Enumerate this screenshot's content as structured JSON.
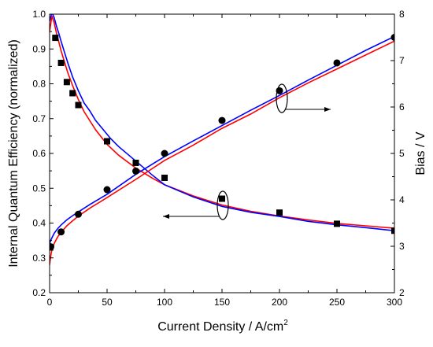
{
  "chart_data": {
    "type": "scatter",
    "title": "",
    "xlabel": "Current Density / A/cm",
    "xlabel_sup": "2",
    "ylabel_left": "Internal Quantum Efficiency (normalized)",
    "ylabel_right": "Bias / V",
    "xlim": [
      0,
      300
    ],
    "ylim_left": [
      0.2,
      1.0
    ],
    "ylim_right": [
      2,
      8
    ],
    "x_ticks": [
      0,
      50,
      100,
      150,
      200,
      250,
      300
    ],
    "x_tick_labels": [
      "0",
      "50",
      "100",
      "150",
      "200",
      "250",
      "300"
    ],
    "y_left_ticks": [
      0.2,
      0.3,
      0.4,
      0.5,
      0.6,
      0.7,
      0.8,
      0.9,
      1.0
    ],
    "y_left_tick_labels": [
      "0.2",
      "0.3",
      "0.4",
      "0.5",
      "0.6",
      "0.7",
      "0.8",
      "0.9",
      "1.0"
    ],
    "y_right_ticks": [
      2,
      3,
      4,
      5,
      6,
      7,
      8
    ],
    "y_right_tick_labels": [
      "2",
      "3",
      "4",
      "5",
      "6",
      "7",
      "8"
    ],
    "series": [
      {
        "marker": "square",
        "axis": "left",
        "color": "#000000",
        "x": [
          0.5,
          5,
          10,
          15,
          20,
          25,
          50,
          75,
          100,
          150,
          200,
          250,
          300
        ],
        "y": [
          0.33,
          0.932,
          0.86,
          0.805,
          0.773,
          0.739,
          0.635,
          0.573,
          0.53,
          0.47,
          0.43,
          0.398,
          0.378
        ]
      },
      {
        "marker": "circle",
        "axis": "right",
        "color": "#000000",
        "x": [
          1,
          10,
          25,
          50,
          75,
          100,
          150,
          200,
          250,
          300
        ],
        "y": [
          2.99,
          3.31,
          3.69,
          4.22,
          4.62,
          5.0,
          5.71,
          6.35,
          6.95,
          7.5
        ]
      },
      {
        "style": "line",
        "axis": "left",
        "color": "#ff0000",
        "x": [
          0,
          2,
          4,
          6,
          8,
          10,
          13,
          16,
          20,
          25,
          30,
          40,
          50,
          60,
          75,
          90,
          100,
          125,
          150,
          175,
          200,
          225,
          250,
          275,
          300
        ],
        "y": [
          0.95,
          0.995,
          0.975,
          0.945,
          0.92,
          0.895,
          0.862,
          0.83,
          0.795,
          0.755,
          0.72,
          0.668,
          0.626,
          0.595,
          0.558,
          0.528,
          0.51,
          0.478,
          0.452,
          0.434,
          0.42,
          0.409,
          0.399,
          0.392,
          0.385
        ]
      },
      {
        "style": "line",
        "axis": "left",
        "color": "#0000ff",
        "x": [
          0,
          2,
          4,
          6,
          8,
          10,
          13,
          16,
          20,
          25,
          30,
          35,
          40,
          53,
          60,
          75,
          90,
          100,
          125,
          150,
          175,
          200,
          225,
          250,
          275,
          300
        ],
        "y": [
          0.98,
          1.005,
          0.99,
          0.965,
          0.945,
          0.922,
          0.89,
          0.858,
          0.82,
          0.78,
          0.745,
          0.722,
          0.695,
          0.643,
          0.62,
          0.578,
          0.536,
          0.51,
          0.475,
          0.448,
          0.431,
          0.419,
          0.405,
          0.395,
          0.387,
          0.378
        ]
      },
      {
        "style": "line",
        "axis": "right",
        "color": "#ff0000",
        "x": [
          0,
          1,
          2,
          4,
          7,
          10,
          15,
          20,
          25,
          35,
          50,
          75,
          100,
          125,
          150,
          175,
          200,
          225,
          250,
          275,
          300
        ],
        "y": [
          2.6,
          2.8,
          2.92,
          3.06,
          3.2,
          3.3,
          3.44,
          3.55,
          3.65,
          3.82,
          4.05,
          4.44,
          4.85,
          5.18,
          5.54,
          5.85,
          6.2,
          6.52,
          6.82,
          7.12,
          7.42
        ]
      },
      {
        "style": "line",
        "axis": "right",
        "color": "#0000ff",
        "x": [
          0,
          1,
          2,
          4,
          7,
          10,
          15,
          20,
          25,
          35,
          50,
          75,
          100,
          125,
          150,
          175,
          200,
          225,
          250,
          275,
          300
        ],
        "y": [
          3.05,
          3.13,
          3.18,
          3.28,
          3.38,
          3.46,
          3.57,
          3.66,
          3.74,
          3.9,
          4.12,
          4.55,
          4.93,
          5.27,
          5.6,
          5.93,
          6.25,
          6.58,
          6.9,
          7.22,
          7.52
        ]
      }
    ]
  }
}
